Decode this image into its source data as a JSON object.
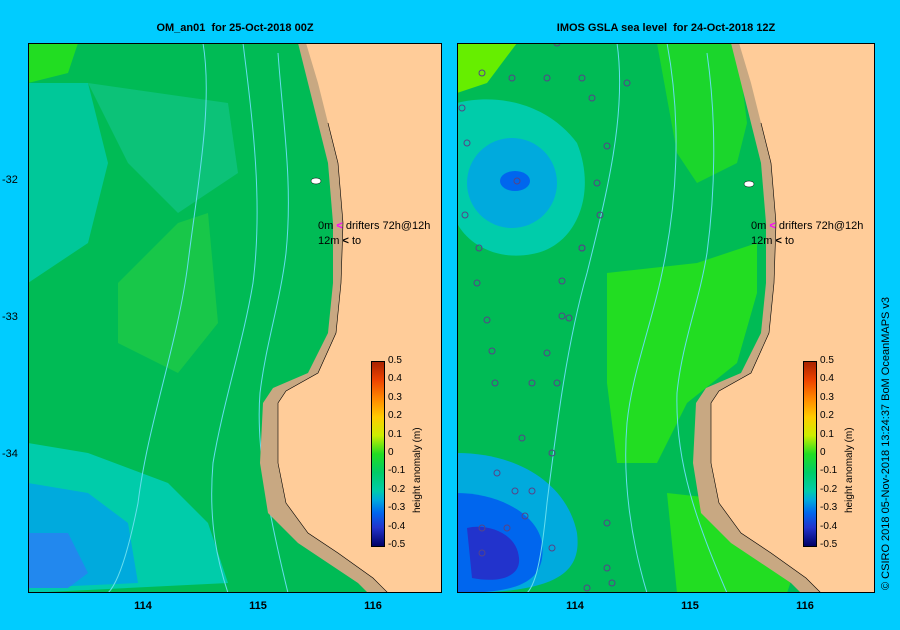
{
  "panels": [
    {
      "title": "OM_an01  for 25-Oct-2018 00Z",
      "drifter_key": {
        "line1_mag": "0m",
        "line1_label": "drifters 72h@12h",
        "line2_mag": "12m",
        "line2_label": "to"
      },
      "colorbar": {
        "title": "height anomaly (m)",
        "ticks": [
          "0.5",
          "0.4",
          "0.3",
          "0.2",
          "0.1",
          "0",
          "-0.1",
          "-0.2",
          "-0.3",
          "-0.4",
          "-0.5"
        ]
      }
    },
    {
      "title": "IMOS GSLA sea level  for 24-Oct-2018 12Z",
      "drifter_key": {
        "line1_mag": "0m",
        "line1_label": "drifters 72h@12h",
        "line2_mag": "12m",
        "line2_label": "to"
      },
      "colorbar": {
        "title": "height anomaly (m)",
        "ticks": [
          "0.5",
          "0.4",
          "0.3",
          "0.2",
          "0.1",
          "0",
          "-0.1",
          "-0.2",
          "-0.3",
          "-0.4",
          "-0.5"
        ]
      }
    }
  ],
  "axes": {
    "lat_ticks": [
      "-32",
      "-33",
      "-34"
    ],
    "lon_ticks_left": [
      "114",
      "115",
      "116"
    ],
    "lon_ticks_right": [
      "114",
      "115",
      "116"
    ]
  },
  "credit": "© CSIRO 2018   05-Nov-2018 13:24:37 BoM OceanMAPS v3",
  "colors": {
    "background": "#00ccff",
    "land": "#ffcc99",
    "shelf": "#c8a882",
    "ocean_green": "#00bb55",
    "bright_green": "#22dd22",
    "teal": "#00ccaa",
    "light_blue": "#00aadd",
    "blue": "#0066ee",
    "deep_blue": "#2233cc",
    "bathy_line": "#66ddee"
  }
}
